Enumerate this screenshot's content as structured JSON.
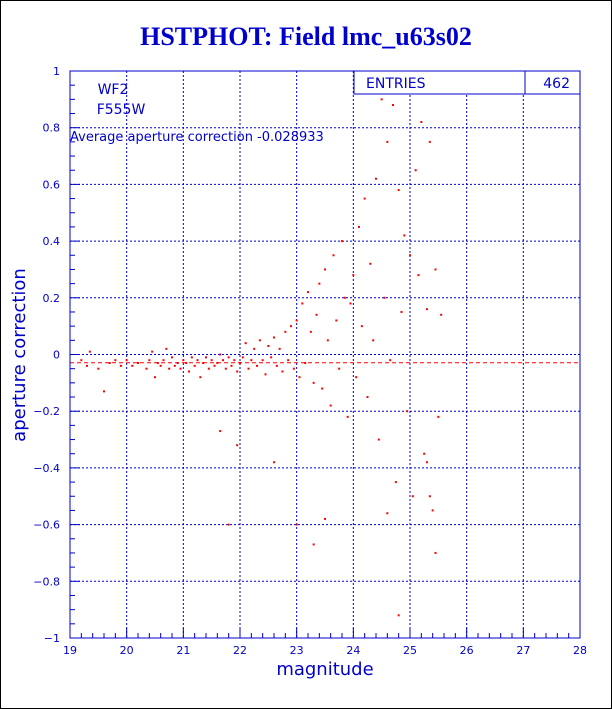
{
  "chart_data": {
    "type": "scatter",
    "title": "HSTPHOT: Field lmc_u63s02",
    "xlabel": "magnitude",
    "ylabel": "aperture correction",
    "xlim": [
      19,
      28
    ],
    "ylim": [
      -1,
      1
    ],
    "x_ticks": [
      19,
      20,
      21,
      22,
      23,
      24,
      25,
      26,
      27,
      28
    ],
    "y_ticks": [
      -1,
      -0.8,
      -0.6,
      -0.4,
      -0.2,
      0,
      0.2,
      0.4,
      0.6,
      0.8,
      1
    ],
    "grid": true,
    "point_color": "#ff0000",
    "axis_color": "#0000cc",
    "legend_text": [
      "WF2",
      "F555W"
    ],
    "annotation": "Average aperture correction -0.028933",
    "reference_line": {
      "y": -0.028933,
      "style": "dashed",
      "color": "#ff0000"
    },
    "stats_box": {
      "label": "ENTRIES",
      "value": "462",
      "position": "top-right"
    },
    "series": [
      {
        "points": [
          [
            19.2,
            -0.02
          ],
          [
            19.3,
            -0.04
          ],
          [
            19.35,
            0.01
          ],
          [
            19.5,
            -0.05
          ],
          [
            19.6,
            -0.13
          ],
          [
            19.7,
            -0.03
          ],
          [
            19.8,
            -0.02
          ],
          [
            19.9,
            -0.04
          ],
          [
            20.0,
            -0.02
          ],
          [
            20.1,
            -0.04
          ],
          [
            20.2,
            -0.03
          ],
          [
            20.35,
            -0.05
          ],
          [
            20.4,
            -0.02
          ],
          [
            20.45,
            0.01
          ],
          [
            20.5,
            -0.08
          ],
          [
            20.55,
            -0.03
          ],
          [
            20.6,
            -0.04
          ],
          [
            20.65,
            -0.02
          ],
          [
            20.7,
            0.02
          ],
          [
            20.75,
            -0.05
          ],
          [
            20.8,
            -0.01
          ],
          [
            20.85,
            -0.04
          ],
          [
            20.9,
            -0.03
          ],
          [
            20.95,
            -0.05
          ],
          [
            21.0,
            -0.02
          ],
          [
            21.05,
            -0.03
          ],
          [
            21.1,
            -0.06
          ],
          [
            21.15,
            -0.01
          ],
          [
            21.2,
            -0.04
          ],
          [
            21.25,
            -0.02
          ],
          [
            21.3,
            -0.08
          ],
          [
            21.35,
            -0.03
          ],
          [
            21.4,
            -0.01
          ],
          [
            21.45,
            -0.05
          ],
          [
            21.5,
            -0.02
          ],
          [
            21.55,
            -0.04
          ],
          [
            21.6,
            -0.03
          ],
          [
            21.65,
            0.0
          ],
          [
            21.7,
            -0.02
          ],
          [
            21.75,
            -0.05
          ],
          [
            21.8,
            -0.01
          ],
          [
            21.85,
            -0.04
          ],
          [
            21.9,
            -0.02
          ],
          [
            21.95,
            -0.06
          ],
          [
            22.0,
            -0.03
          ],
          [
            22.05,
            -0.01
          ],
          [
            22.1,
            0.04
          ],
          [
            22.15,
            -0.05
          ],
          [
            22.2,
            -0.02
          ],
          [
            22.25,
            0.02
          ],
          [
            22.3,
            -0.04
          ],
          [
            22.35,
            0.05
          ],
          [
            22.4,
            -0.02
          ],
          [
            22.45,
            -0.07
          ],
          [
            22.5,
            0.03
          ],
          [
            22.55,
            -0.01
          ],
          [
            22.6,
            0.06
          ],
          [
            22.65,
            -0.04
          ],
          [
            22.7,
            0.02
          ],
          [
            22.75,
            -0.06
          ],
          [
            22.8,
            0.08
          ],
          [
            22.85,
            -0.02
          ],
          [
            22.9,
            0.1
          ],
          [
            22.95,
            -0.05
          ],
          [
            23.0,
            0.12
          ],
          [
            23.05,
            -0.08
          ],
          [
            23.1,
            0.18
          ],
          [
            23.15,
            -0.03
          ],
          [
            23.2,
            0.22
          ],
          [
            23.25,
            0.08
          ],
          [
            23.3,
            -0.1
          ],
          [
            23.35,
            0.14
          ],
          [
            23.4,
            0.25
          ],
          [
            23.45,
            -0.12
          ],
          [
            23.5,
            0.3
          ],
          [
            23.55,
            0.05
          ],
          [
            23.6,
            -0.18
          ],
          [
            23.65,
            0.35
          ],
          [
            23.7,
            0.12
          ],
          [
            23.75,
            -0.05
          ],
          [
            23.8,
            0.4
          ],
          [
            23.85,
            0.2
          ],
          [
            23.9,
            -0.22
          ],
          [
            23.95,
            0.18
          ],
          [
            24.0,
            0.28
          ],
          [
            24.05,
            -0.08
          ],
          [
            24.1,
            0.45
          ],
          [
            24.15,
            0.1
          ],
          [
            24.2,
            0.55
          ],
          [
            24.25,
            -0.15
          ],
          [
            24.3,
            0.32
          ],
          [
            24.35,
            0.05
          ],
          [
            24.4,
            0.62
          ],
          [
            24.45,
            -0.3
          ],
          [
            24.5,
            0.9
          ],
          [
            24.55,
            0.2
          ],
          [
            24.6,
            0.75
          ],
          [
            24.65,
            -0.02
          ],
          [
            24.7,
            0.88
          ],
          [
            24.75,
            -0.45
          ],
          [
            24.8,
            0.58
          ],
          [
            24.85,
            0.15
          ],
          [
            24.9,
            0.42
          ],
          [
            24.95,
            -0.2
          ],
          [
            25.0,
            0.35
          ],
          [
            25.05,
            -0.5
          ],
          [
            25.1,
            0.65
          ],
          [
            25.15,
            0.28
          ],
          [
            25.2,
            0.82
          ],
          [
            25.25,
            -0.35
          ],
          [
            25.3,
            0.16
          ],
          [
            25.35,
            0.75
          ],
          [
            25.4,
            -0.55
          ],
          [
            25.45,
            0.3
          ],
          [
            25.5,
            -0.22
          ],
          [
            25.55,
            0.14
          ],
          [
            21.8,
            -0.6
          ],
          [
            21.65,
            -0.27
          ],
          [
            21.95,
            -0.32
          ],
          [
            22.6,
            -0.38
          ],
          [
            23.0,
            -0.6
          ],
          [
            23.3,
            -0.67
          ],
          [
            23.5,
            -0.58
          ],
          [
            24.6,
            -0.56
          ],
          [
            24.8,
            -0.92
          ],
          [
            25.3,
            -0.38
          ],
          [
            25.45,
            -0.7
          ],
          [
            25.35,
            -0.5
          ]
        ]
      }
    ]
  }
}
